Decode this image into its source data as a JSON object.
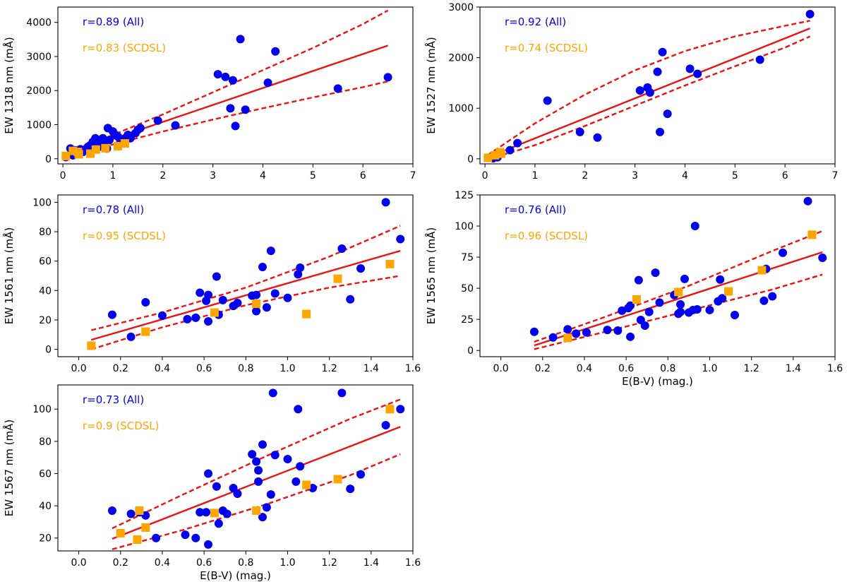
{
  "colors": {
    "all": "#0000ee",
    "scdsl": "#ffa500",
    "fit": "#ee1111",
    "axis": "#000000"
  },
  "chart_data": [
    {
      "type": "scatter",
      "ylabel": "EW 1318 nm (mÅ)",
      "xlabel": "",
      "xlim": [
        -0.1,
        7
      ],
      "ylim": [
        -150,
        4450
      ],
      "xticks": [
        0,
        1,
        2,
        3,
        4,
        5,
        6,
        7
      ],
      "xtick_labels": [
        "0",
        "1",
        "2",
        "3",
        "4",
        "5",
        "6",
        "7"
      ],
      "yticks": [
        0,
        1000,
        2000,
        3000,
        4000
      ],
      "ytick_labels": [
        "0",
        "1000",
        "2000",
        "3000",
        "4000"
      ],
      "r_all": "r=0.89 (All)",
      "r_scdsl": "r=0.83 (SCDSL)",
      "fit": {
        "x": [
          0.05,
          6.5
        ],
        "y": [
          110,
          3320
        ]
      },
      "fit_upper": {
        "x": [
          0.05,
          1.0,
          2.0,
          3.0,
          4.0,
          5.0,
          6.0,
          6.5
        ],
        "y": [
          150,
          700,
          1300,
          1950,
          2600,
          3250,
          3950,
          4350
        ]
      },
      "fit_lower": {
        "x": [
          0.05,
          1.0,
          2.0,
          3.0,
          4.0,
          5.0,
          6.0,
          6.5
        ],
        "y": [
          60,
          420,
          800,
          1150,
          1480,
          1800,
          2100,
          2270
        ]
      },
      "series": [
        {
          "name": "All",
          "marker": "circle",
          "x": [
            0.06,
            0.15,
            0.2,
            0.25,
            0.3,
            0.35,
            0.4,
            0.45,
            0.5,
            0.55,
            0.6,
            0.62,
            0.65,
            0.7,
            0.72,
            0.75,
            0.78,
            0.8,
            0.85,
            0.88,
            0.9,
            0.93,
            1.0,
            1.05,
            1.1,
            1.15,
            1.25,
            1.3,
            1.35,
            1.45,
            1.5,
            1.55,
            1.9,
            2.25,
            3.1,
            3.25,
            3.35,
            3.4,
            3.45,
            3.55,
            3.65,
            4.1,
            4.25,
            5.5,
            6.5
          ],
          "y": [
            50,
            300,
            100,
            250,
            180,
            280,
            200,
            250,
            350,
            400,
            500,
            300,
            600,
            450,
            350,
            550,
            400,
            600,
            450,
            300,
            900,
            550,
            800,
            700,
            650,
            500,
            600,
            700,
            600,
            750,
            850,
            900,
            1120,
            980,
            2480,
            2400,
            1480,
            2300,
            960,
            3510,
            1440,
            2230,
            3150,
            2060,
            2390
          ]
        },
        {
          "name": "SCDSL",
          "marker": "square",
          "x": [
            0.06,
            0.2,
            0.3,
            0.32,
            0.55,
            0.66,
            0.85,
            1.1,
            1.24
          ],
          "y": [
            80,
            230,
            200,
            130,
            150,
            270,
            310,
            370,
            450
          ]
        }
      ]
    },
    {
      "type": "scatter",
      "ylabel": "EW 1527 nm (mÅ)",
      "xlabel": "",
      "xlim": [
        -0.1,
        7
      ],
      "ylim": [
        -100,
        3000
      ],
      "xticks": [
        0,
        1,
        2,
        3,
        4,
        5,
        6,
        7
      ],
      "xtick_labels": [
        "0",
        "1",
        "2",
        "3",
        "4",
        "5",
        "6",
        "7"
      ],
      "yticks": [
        0,
        1000,
        2000,
        3000
      ],
      "ytick_labels": [
        "0",
        "1000",
        "2000",
        "3000"
      ],
      "r_all": "r=0.92 (All)",
      "r_scdsl": "r=0.74 (SCDSL)",
      "fit": {
        "x": [
          0.05,
          6.5
        ],
        "y": [
          30,
          2580
        ]
      },
      "fit_upper": {
        "x": [
          0.05,
          0.5,
          1.0,
          2.0,
          3.0,
          4.0,
          5.0,
          6.0,
          6.5
        ],
        "y": [
          70,
          370,
          700,
          1270,
          1750,
          2130,
          2420,
          2630,
          2730
        ]
      },
      "fit_lower": {
        "x": [
          0.05,
          0.5,
          1.0,
          2.0,
          3.0,
          4.0,
          5.0,
          6.0,
          6.5
        ],
        "y": [
          -10,
          120,
          270,
          650,
          1050,
          1450,
          1830,
          2200,
          2420
        ]
      },
      "series": [
        {
          "name": "All",
          "marker": "circle",
          "x": [
            0.06,
            0.16,
            0.25,
            0.5,
            0.65,
            1.25,
            1.9,
            2.25,
            3.1,
            3.25,
            3.3,
            3.45,
            3.5,
            3.55,
            3.65,
            4.1,
            4.25,
            5.5,
            6.5
          ],
          "y": [
            20,
            10,
            30,
            170,
            310,
            1150,
            530,
            420,
            1350,
            1410,
            1310,
            1720,
            530,
            2110,
            890,
            1780,
            1680,
            1960,
            2860
          ]
        },
        {
          "name": "SCDSL",
          "marker": "square",
          "x": [
            0.06,
            0.2,
            0.3,
            0.32
          ],
          "y": [
            20,
            70,
            130,
            100
          ]
        }
      ]
    },
    {
      "type": "scatter",
      "ylabel": "EW 1561 nm (mÅ)",
      "xlabel": "",
      "xlim": [
        -0.1,
        1.6
      ],
      "ylim": [
        -5,
        105
      ],
      "xticks": [
        0.0,
        0.2,
        0.4,
        0.6,
        0.8,
        1.0,
        1.2,
        1.4,
        1.6
      ],
      "xtick_labels": [
        "0.0",
        "0.2",
        "0.4",
        "0.6",
        "0.8",
        "1.0",
        "1.2",
        "1.4",
        "1.6"
      ],
      "yticks": [
        0,
        20,
        40,
        60,
        80,
        100
      ],
      "ytick_labels": [
        "0",
        "20",
        "40",
        "60",
        "80",
        "100"
      ],
      "r_all": "r=0.78 (All)",
      "r_scdsl": "r=0.95 (SCDSL)",
      "fit": {
        "x": [
          0.06,
          1.54
        ],
        "y": [
          6.5,
          67
        ]
      },
      "fit_upper": {
        "x": [
          0.06,
          0.4,
          0.8,
          1.2,
          1.54
        ],
        "y": [
          13,
          25,
          42,
          63,
          84
        ]
      },
      "fit_lower": {
        "x": [
          0.06,
          0.4,
          0.8,
          1.2,
          1.54
        ],
        "y": [
          0,
          15,
          30,
          42,
          50
        ]
      },
      "series": [
        {
          "name": "All",
          "marker": "circle",
          "x": [
            0.16,
            0.25,
            0.32,
            0.4,
            0.52,
            0.56,
            0.58,
            0.61,
            0.62,
            0.62,
            0.66,
            0.67,
            0.69,
            0.74,
            0.76,
            0.83,
            0.85,
            0.85,
            0.88,
            0.9,
            0.92,
            0.94,
            1.0,
            1.05,
            1.06,
            1.26,
            1.3,
            1.35,
            1.47,
            1.54
          ],
          "y": [
            23.5,
            8.5,
            32,
            23,
            20.5,
            21.5,
            38.5,
            33,
            37,
            19,
            49.5,
            23.5,
            33.5,
            29.5,
            31.5,
            36.5,
            26,
            37,
            56,
            28.5,
            67,
            38,
            35,
            51,
            55.5,
            68.5,
            34,
            55,
            100,
            75
          ]
        },
        {
          "name": "SCDSL",
          "marker": "square",
          "x": [
            0.06,
            0.32,
            0.65,
            0.85,
            1.09,
            1.24,
            1.49
          ],
          "y": [
            2.5,
            12,
            25,
            31,
            24,
            48,
            58
          ]
        }
      ]
    },
    {
      "type": "scatter",
      "ylabel": "EW 1565 nm (mÅ)",
      "xlabel": "E(B-V) (mag.)",
      "xlim": [
        -0.1,
        1.6
      ],
      "ylim": [
        -5,
        125
      ],
      "xticks": [
        0.0,
        0.2,
        0.4,
        0.6,
        0.8,
        1.0,
        1.2,
        1.4,
        1.6
      ],
      "xtick_labels": [
        "0.0",
        "0.2",
        "0.4",
        "0.6",
        "0.8",
        "1.0",
        "1.2",
        "1.4",
        "1.6"
      ],
      "yticks": [
        0,
        25,
        50,
        75,
        100,
        125
      ],
      "ytick_labels": [
        "0",
        "25",
        "50",
        "75",
        "100",
        "125"
      ],
      "r_all": "r=0.76 (All)",
      "r_scdsl": "r=0.96 (SCDSL)",
      "fit": {
        "x": [
          0.16,
          1.54
        ],
        "y": [
          4,
          79
        ]
      },
      "fit_upper": {
        "x": [
          0.16,
          0.5,
          0.9,
          1.3,
          1.54
        ],
        "y": [
          7,
          27,
          52,
          80,
          96
        ]
      },
      "fit_lower": {
        "x": [
          0.16,
          0.5,
          0.9,
          1.3,
          1.54
        ],
        "y": [
          1,
          15,
          32,
          49,
          61
        ]
      },
      "series": [
        {
          "name": "All",
          "marker": "circle",
          "x": [
            0.16,
            0.25,
            0.32,
            0.36,
            0.41,
            0.51,
            0.56,
            0.58,
            0.61,
            0.62,
            0.62,
            0.66,
            0.67,
            0.69,
            0.71,
            0.74,
            0.76,
            0.83,
            0.85,
            0.86,
            0.86,
            0.88,
            0.9,
            0.92,
            0.93,
            0.94,
            1.0,
            1.04,
            1.05,
            1.06,
            1.12,
            1.26,
            1.27,
            1.3,
            1.35,
            1.47,
            1.54
          ],
          "y": [
            15,
            10.5,
            17,
            13.5,
            14.5,
            16.5,
            16,
            32,
            34,
            11,
            36,
            56.5,
            24.5,
            20,
            31,
            62.5,
            38.5,
            44.5,
            29.5,
            31,
            37,
            57.5,
            30.5,
            32.5,
            100,
            33,
            32.5,
            39.5,
            57,
            42,
            28.5,
            40,
            65.5,
            43.5,
            78.5,
            120,
            74.5
          ]
        },
        {
          "name": "SCDSL",
          "marker": "square",
          "x": [
            0.32,
            0.65,
            0.85,
            1.09,
            1.25,
            1.49
          ],
          "y": [
            10,
            41,
            47,
            47.5,
            64.5,
            93
          ]
        }
      ]
    },
    {
      "type": "scatter",
      "ylabel": "EW 1567 nm (mÅ)",
      "xlabel": "E(B-V) (mag.)",
      "xlim": [
        -0.1,
        1.6
      ],
      "ylim": [
        12,
        115
      ],
      "xticks": [
        0.0,
        0.2,
        0.4,
        0.6,
        0.8,
        1.0,
        1.2,
        1.4,
        1.6
      ],
      "xtick_labels": [
        "0.0",
        "0.2",
        "0.4",
        "0.6",
        "0.8",
        "1.0",
        "1.2",
        "1.4",
        "1.6"
      ],
      "yticks": [
        20,
        40,
        60,
        80,
        100
      ],
      "ytick_labels": [
        "20",
        "40",
        "60",
        "80",
        "100"
      ],
      "r_all": "r=0.73 (All)",
      "r_scdsl": "r=0.9 (SCDSL)",
      "fit": {
        "x": [
          0.16,
          1.54
        ],
        "y": [
          19.5,
          89
        ]
      },
      "fit_upper": {
        "x": [
          0.16,
          0.5,
          0.9,
          1.3,
          1.54
        ],
        "y": [
          26,
          47,
          71,
          94,
          106
        ]
      },
      "fit_lower": {
        "x": [
          0.16,
          0.5,
          0.9,
          1.3,
          1.54
        ],
        "y": [
          13,
          25,
          41,
          59,
          72
        ]
      },
      "series": [
        {
          "name": "All",
          "marker": "circle",
          "x": [
            0.16,
            0.25,
            0.29,
            0.32,
            0.37,
            0.51,
            0.56,
            0.58,
            0.61,
            0.62,
            0.62,
            0.66,
            0.67,
            0.69,
            0.71,
            0.74,
            0.76,
            0.83,
            0.85,
            0.86,
            0.86,
            0.88,
            0.88,
            0.9,
            0.92,
            0.93,
            0.94,
            1.0,
            1.04,
            1.05,
            1.06,
            1.12,
            1.26,
            1.3,
            1.35,
            1.47,
            1.54
          ],
          "y": [
            37,
            35,
            36,
            34,
            20,
            22,
            20,
            36,
            36,
            16,
            60,
            52,
            29,
            37,
            35,
            51,
            47.5,
            72,
            67.5,
            62,
            55,
            33,
            78,
            39,
            47,
            110,
            71.5,
            69,
            55,
            100,
            64.5,
            51,
            110,
            50.5,
            59.5,
            90,
            100
          ]
        },
        {
          "name": "SCDSL",
          "marker": "square",
          "x": [
            0.2,
            0.28,
            0.29,
            0.32,
            0.65,
            0.85,
            1.09,
            1.24,
            1.49
          ],
          "y": [
            23,
            19,
            37,
            26.5,
            35.5,
            37,
            53,
            56.5,
            100
          ]
        }
      ]
    }
  ]
}
